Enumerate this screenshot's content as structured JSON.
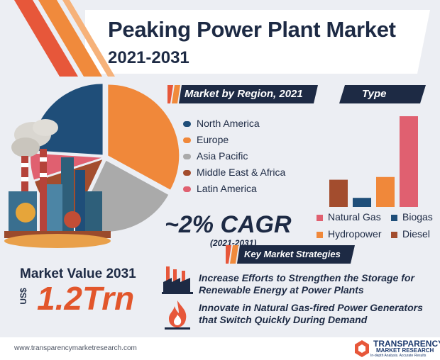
{
  "header": {
    "title": "Peaking Power Plant Market",
    "subtitle": "2021-2031"
  },
  "region_section": {
    "label": "Market by Region, 2021"
  },
  "type_section": {
    "label": "Type"
  },
  "cagr": {
    "value": "~2% CAGR",
    "period": "(2021-2031)"
  },
  "strategies": {
    "label": "Key Market Strategies",
    "items": [
      "Increase Efforts to Strengthen the Storage for Renewable Energy at Power Plants",
      "Innovate in Natural Gas-fired Power Generators that Switch Quickly During Demand"
    ]
  },
  "market_value": {
    "label": "Market Value 2031",
    "currency": "US$",
    "value": "1.2Trn"
  },
  "footer": {
    "url": "www.transparencymarketresearch.com",
    "brand_line1": "TRANSPARENCY",
    "brand_line2": "MARKET RESEARCH",
    "brand_tagline": "In-depth Analysis. Accurate Results"
  },
  "colors": {
    "navy": "#1d2a44",
    "north_america": "#1f4e79",
    "europe": "#f0883a",
    "asia_pacific": "#aaaaaa",
    "middle_east_africa": "#a34d2e",
    "latin_america": "#e06070",
    "natural_gas": "#e06070",
    "biogas": "#1f4e79",
    "hydropower": "#f0883a",
    "diesel": "#a34d2e",
    "accent_orange": "#e2562b"
  },
  "chart_data": [
    {
      "type": "pie",
      "title": "Market by Region, 2021",
      "categories": [
        "North America",
        "Europe",
        "Asia Pacific",
        "Middle East & Africa",
        "Latin America"
      ],
      "values": [
        24,
        33,
        24,
        13,
        6
      ],
      "legend": "right"
    },
    {
      "type": "bar",
      "title": "Type",
      "categories": [
        "Natural Gas",
        "Biogas",
        "Hydropower",
        "Diesel"
      ],
      "order_left_to_right": [
        "Diesel",
        "Biogas",
        "Hydropower",
        "Natural Gas"
      ],
      "values": [
        100,
        10,
        33,
        30
      ],
      "legend": "bottom"
    }
  ]
}
